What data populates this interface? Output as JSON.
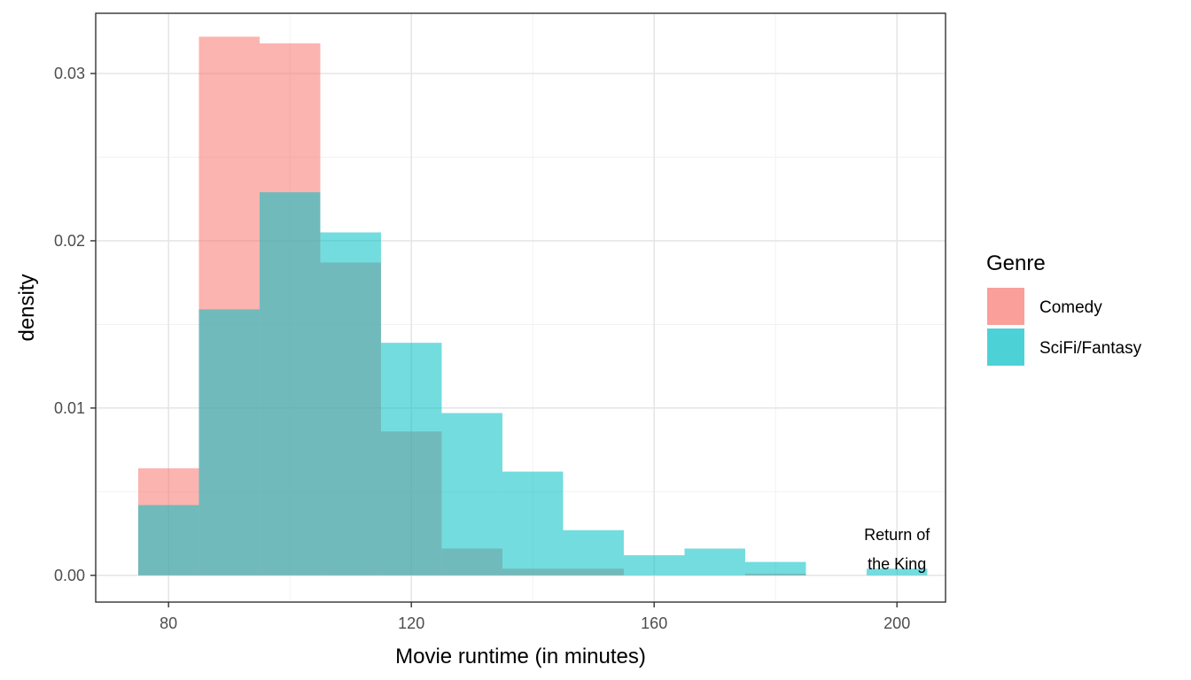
{
  "chart_data": {
    "type": "bar",
    "subtype": "overlapping histogram",
    "xlabel": "Movie runtime (in minutes)",
    "ylabel": "density",
    "xlim": [
      68,
      208
    ],
    "ylim": [
      -0.0016,
      0.0336
    ],
    "x_ticks": [
      80,
      120,
      160,
      200
    ],
    "y_ticks": [
      0.0,
      0.01,
      0.02,
      0.03
    ],
    "y_tick_labels": [
      "0.00",
      "0.01",
      "0.02",
      "0.03"
    ],
    "bin_width": 10,
    "grid": true,
    "legend": {
      "title": "Genre",
      "position": "right",
      "entries": [
        "Comedy",
        "SciFi/Fantasy"
      ]
    },
    "series": [
      {
        "name": "Comedy",
        "color": "#F8766D",
        "bins": [
          {
            "x0": 75,
            "x1": 85,
            "value": 0.0064
          },
          {
            "x0": 85,
            "x1": 95,
            "value": 0.0322
          },
          {
            "x0": 95,
            "x1": 105,
            "value": 0.0318
          },
          {
            "x0": 105,
            "x1": 115,
            "value": 0.0187
          },
          {
            "x0": 115,
            "x1": 125,
            "value": 0.0086
          },
          {
            "x0": 125,
            "x1": 135,
            "value": 0.0016
          },
          {
            "x0": 135,
            "x1": 145,
            "value": 0.0004
          },
          {
            "x0": 145,
            "x1": 155,
            "value": 0.0004
          },
          {
            "x0": 155,
            "x1": 165,
            "value": 0.0
          },
          {
            "x0": 165,
            "x1": 175,
            "value": 0.0
          },
          {
            "x0": 175,
            "x1": 185,
            "value": 0.0001
          },
          {
            "x0": 185,
            "x1": 195,
            "value": 0.0
          },
          {
            "x0": 195,
            "x1": 205,
            "value": 0.0
          }
        ]
      },
      {
        "name": "SciFi/Fantasy",
        "color": "#00BFC4",
        "bins": [
          {
            "x0": 75,
            "x1": 85,
            "value": 0.0042
          },
          {
            "x0": 85,
            "x1": 95,
            "value": 0.0159
          },
          {
            "x0": 95,
            "x1": 105,
            "value": 0.0229
          },
          {
            "x0": 105,
            "x1": 115,
            "value": 0.0205
          },
          {
            "x0": 115,
            "x1": 125,
            "value": 0.0139
          },
          {
            "x0": 125,
            "x1": 135,
            "value": 0.0097
          },
          {
            "x0": 135,
            "x1": 145,
            "value": 0.0062
          },
          {
            "x0": 145,
            "x1": 155,
            "value": 0.0027
          },
          {
            "x0": 155,
            "x1": 165,
            "value": 0.0012
          },
          {
            "x0": 165,
            "x1": 175,
            "value": 0.0016
          },
          {
            "x0": 175,
            "x1": 185,
            "value": 0.0008
          },
          {
            "x0": 185,
            "x1": 195,
            "value": 0.0
          },
          {
            "x0": 195,
            "x1": 205,
            "value": 0.0004
          }
        ]
      }
    ],
    "annotations": [
      {
        "lines": [
          "Return of",
          "the King"
        ],
        "x": 200
      }
    ]
  }
}
